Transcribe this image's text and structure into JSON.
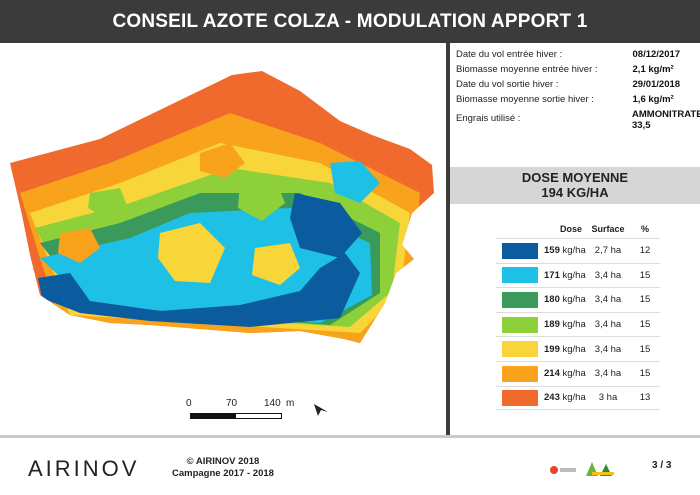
{
  "header": {
    "title": "CONSEIL AZOTE COLZA - MODULATION APPORT 1"
  },
  "info": [
    {
      "label": "Date du vol entrée hiver :",
      "value": "08/12/2017"
    },
    {
      "label": "Biomasse moyenne entrée hiver :",
      "value": "2,1 kg/m²"
    },
    {
      "label": "Date du vol sortie hiver :",
      "value": "29/01/2018"
    },
    {
      "label": "Biomasse moyenne sortie hiver :",
      "value": "1,6 kg/m²"
    },
    {
      "label": "Engrais utilisé :",
      "value": "AMMONITRATE 33,5"
    }
  ],
  "dose": {
    "title": "DOSE MOYENNE",
    "value": "194 KG/HA"
  },
  "legend": {
    "headers": {
      "dose": "Dose",
      "surface": "Surface",
      "pct": "%"
    },
    "unit": "kg/ha",
    "rows": [
      {
        "dose": "159",
        "surface": "2,7 ha",
        "pct": "12",
        "color": "#0b5c9e"
      },
      {
        "dose": "171",
        "surface": "3,4 ha",
        "pct": "15",
        "color": "#1ec0e6"
      },
      {
        "dose": "180",
        "surface": "3,4 ha",
        "pct": "15",
        "color": "#3a9a5c"
      },
      {
        "dose": "189",
        "surface": "3,4 ha",
        "pct": "15",
        "color": "#8ed03a"
      },
      {
        "dose": "199",
        "surface": "3,4 ha",
        "pct": "15",
        "color": "#f8d63a"
      },
      {
        "dose": "214",
        "surface": "3,4 ha",
        "pct": "15",
        "color": "#f9a21b"
      },
      {
        "dose": "243",
        "surface": "3 ha",
        "pct": "13",
        "color": "#ef6a2c"
      }
    ]
  },
  "scale": {
    "t0": "0",
    "t1": "70",
    "t2": "140",
    "unit": "m"
  },
  "footer": {
    "logo": "AIRINOV",
    "copyright": "© AIRINOV 2018",
    "campaign": "Campagne 2017 - 2018",
    "page": "3 / 3"
  }
}
